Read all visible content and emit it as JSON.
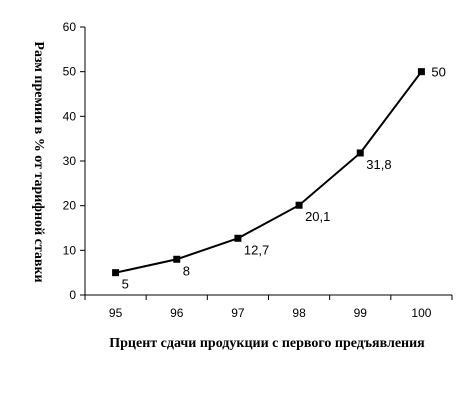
{
  "chart_data": {
    "type": "line",
    "title": "",
    "xlabel": "Прцент сдачи продукции с первого предъявления",
    "ylabel": "Разм премии в % от тарифной ставки",
    "categories": [
      "95",
      "96",
      "97",
      "98",
      "99",
      "100"
    ],
    "series": [
      {
        "values": [
          5,
          8,
          12.7,
          20.1,
          31.8,
          50
        ],
        "labels": [
          "5",
          "8",
          "12,7",
          "20,1",
          "31,8",
          "50"
        ],
        "color": "#000000",
        "marker": "square"
      }
    ],
    "ylim": [
      0,
      60
    ],
    "yticks": [
      "0",
      "10",
      "20",
      "30",
      "40",
      "50",
      "60"
    ],
    "grid": false,
    "legend": "none"
  }
}
